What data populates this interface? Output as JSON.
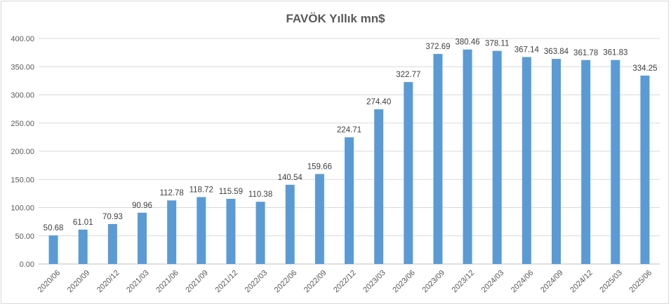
{
  "chart_data": {
    "type": "bar",
    "title": "FAVÖK Yıllık mn$",
    "xlabel": "",
    "ylabel": "",
    "ylim": [
      0,
      400
    ],
    "yticks": [
      "0.00",
      "50.00",
      "100.00",
      "150.00",
      "200.00",
      "250.00",
      "300.00",
      "350.00",
      "400.00"
    ],
    "grid": true,
    "legend": "none",
    "bar_color": "#5b9bd5",
    "categories": [
      "2020/06",
      "2020/09",
      "2020/12",
      "2021/03",
      "2021/06",
      "2021/09",
      "2021/12",
      "2022/03",
      "2022/06",
      "2022/09",
      "2022/12",
      "2023/03",
      "2023/06",
      "2023/09",
      "2023/12",
      "2024/03",
      "2024/06",
      "2024/09",
      "2024/12",
      "2025/03",
      "2025/06"
    ],
    "values": [
      50.68,
      61.01,
      70.93,
      90.96,
      112.78,
      118.72,
      115.59,
      110.38,
      140.54,
      159.66,
      224.71,
      274.4,
      322.77,
      372.69,
      380.46,
      378.11,
      367.14,
      363.84,
      361.78,
      361.83,
      334.25
    ],
    "value_labels": [
      "50.68",
      "61.01",
      "70.93",
      "90.96",
      "112.78",
      "118.72",
      "115.59",
      "110.38",
      "140.54",
      "159.66",
      "224.71",
      "274.40",
      "322.77",
      "372.69",
      "380.46",
      "378.11",
      "367.14",
      "363.84",
      "361.78",
      "361.83",
      "334.25"
    ]
  }
}
